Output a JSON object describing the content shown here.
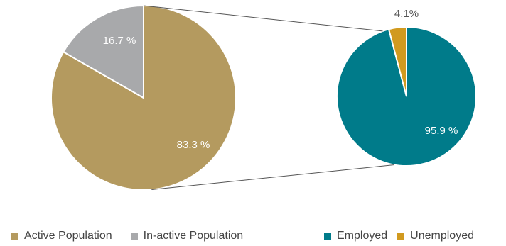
{
  "colors": {
    "active": "#b49a5f",
    "inactive": "#a8a9ab",
    "employed": "#007b8a",
    "unemployed": "#d19a1f",
    "connector": "#555555",
    "label_light": "#ffffff",
    "label_dark": "#555555"
  },
  "chart_data": [
    {
      "type": "pie",
      "labels": [
        "Active Population",
        "In-active Population"
      ],
      "values": [
        83.3,
        16.7
      ],
      "value_labels": [
        "83.3 %",
        "16.7 %"
      ],
      "legend_position": "bottom"
    },
    {
      "type": "pie",
      "labels": [
        "Employed",
        "Unemployed"
      ],
      "values": [
        95.9,
        4.1
      ],
      "value_labels": [
        "95.9 %",
        "4.1%"
      ],
      "legend_position": "bottom"
    }
  ],
  "legend": {
    "left": [
      {
        "label": "Active Population",
        "color": "#b49a5f"
      },
      {
        "label": "In-active Population",
        "color": "#a8a9ab"
      }
    ],
    "right": [
      {
        "label": "Employed",
        "color": "#007b8a"
      },
      {
        "label": "Unemployed",
        "color": "#d19a1f"
      }
    ]
  }
}
